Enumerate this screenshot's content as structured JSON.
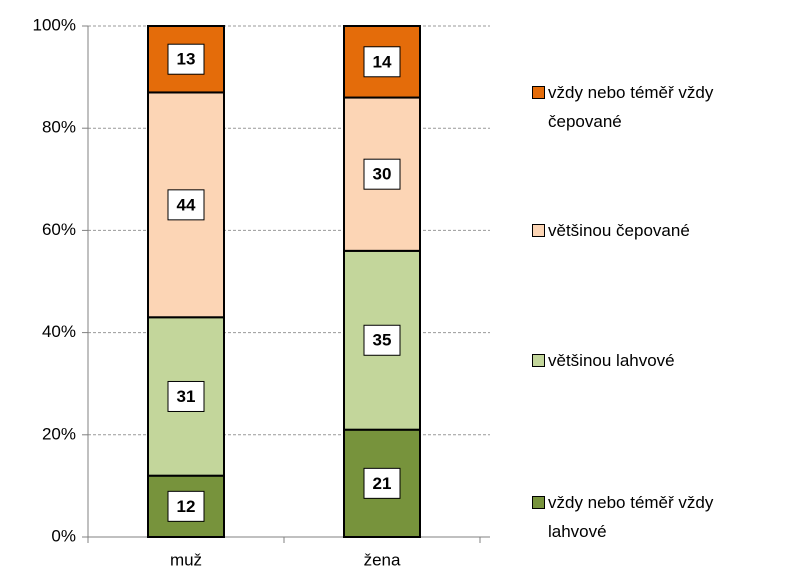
{
  "chart_data": {
    "type": "stacked_bar",
    "categories": [
      "muž",
      "žena"
    ],
    "series": [
      {
        "name": "vždy nebo téměř vždy lahvové",
        "color": "#77933c",
        "values": [
          12,
          21
        ]
      },
      {
        "name": "většinou lahvové",
        "color": "#c3d69b",
        "values": [
          31,
          35
        ]
      },
      {
        "name": "většinou čepované",
        "color": "#fcd5b5",
        "values": [
          44,
          30
        ]
      },
      {
        "name": "vždy nebo téměř vždy čepované",
        "color": "#e46c0a",
        "values": [
          13,
          14
        ]
      }
    ],
    "ylim": [
      0,
      100
    ],
    "yticks": [
      {
        "value": 0,
        "label": "0%"
      },
      {
        "value": 20,
        "label": "20%"
      },
      {
        "value": 40,
        "label": "40%"
      },
      {
        "value": 60,
        "label": "60%"
      },
      {
        "value": 80,
        "label": "80%"
      },
      {
        "value": 100,
        "label": "100%"
      }
    ],
    "grid": true,
    "legend": "right"
  }
}
